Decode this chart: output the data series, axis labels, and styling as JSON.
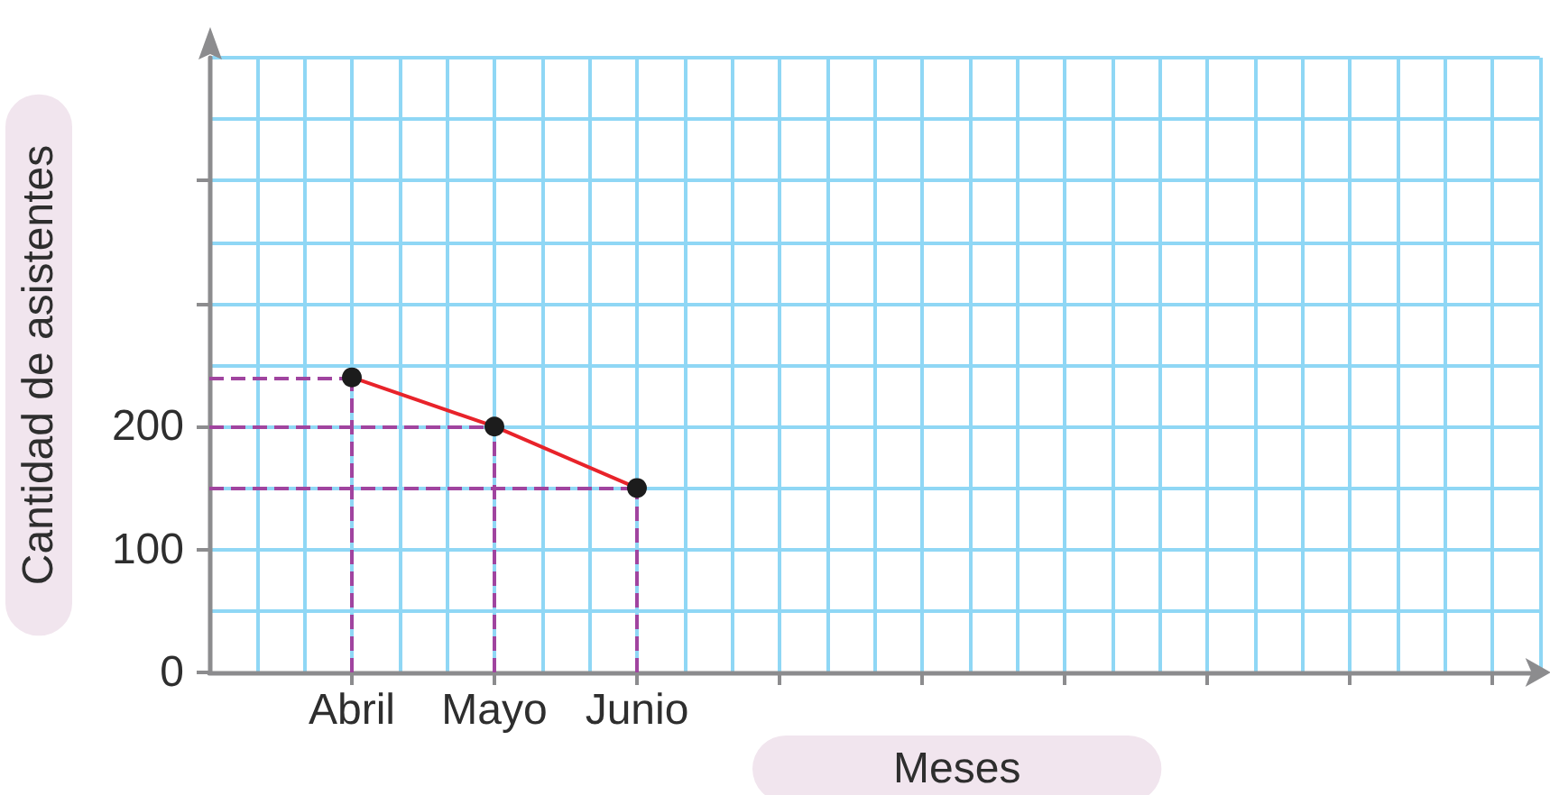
{
  "chart_data": {
    "type": "line",
    "xlabel": "Meses",
    "ylabel": "Cantidad de asistentes",
    "categories": [
      "Abril",
      "Mayo",
      "Junio",
      null,
      null,
      null,
      null,
      null,
      null
    ],
    "values": [
      240,
      200,
      150,
      null,
      null,
      null,
      null,
      null,
      null
    ],
    "color": "#e8232a",
    "marker": "circle",
    "ylim": [
      0,
      500
    ],
    "yticks": [
      0,
      100,
      200,
      {
        "value": 300,
        "label": null
      },
      {
        "value": 400,
        "label": null
      }
    ],
    "grid": true,
    "ref_lines": [
      {
        "axis": "y",
        "value": 240,
        "color": "#a0449f",
        "line_style": "dashed"
      },
      {
        "axis": "y",
        "value": 200,
        "color": "#a0449f",
        "line_style": "dashed"
      },
      {
        "axis": "y",
        "value": 150,
        "color": "#a0449f",
        "line_style": "dashed"
      },
      {
        "axis": "x",
        "value": "Abril",
        "color": "#a0449f",
        "line_style": "dashed"
      },
      {
        "axis": "x",
        "value": "Mayo",
        "color": "#a0449f",
        "line_style": "dashed"
      },
      {
        "axis": "x",
        "value": "Junio",
        "color": "#a0449f",
        "line_style": "dashed"
      }
    ]
  }
}
